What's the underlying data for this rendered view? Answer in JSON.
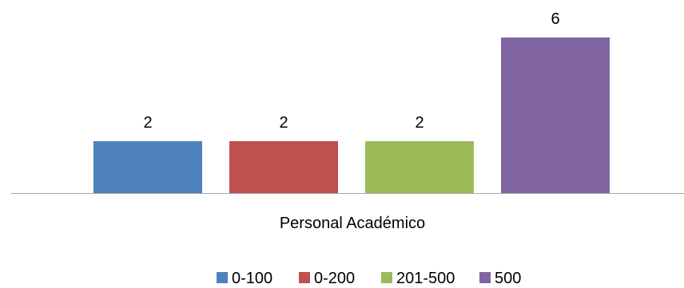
{
  "chart_data": {
    "type": "bar",
    "categories": [
      "Personal Académico"
    ],
    "series": [
      {
        "name": "0-100",
        "values": [
          2
        ],
        "color": "#4f81bd"
      },
      {
        "name": "0-200",
        "values": [
          2
        ],
        "color": "#c0504d"
      },
      {
        "name": "201-500",
        "values": [
          2
        ],
        "color": "#9bbb59"
      },
      {
        "name": "500",
        "values": [
          6
        ],
        "color": "#8064a2"
      }
    ],
    "ylim": [
      0,
      6
    ],
    "grid": false,
    "data_labels": true,
    "legend_position": "bottom",
    "axis_color": "#a6a6a6"
  }
}
